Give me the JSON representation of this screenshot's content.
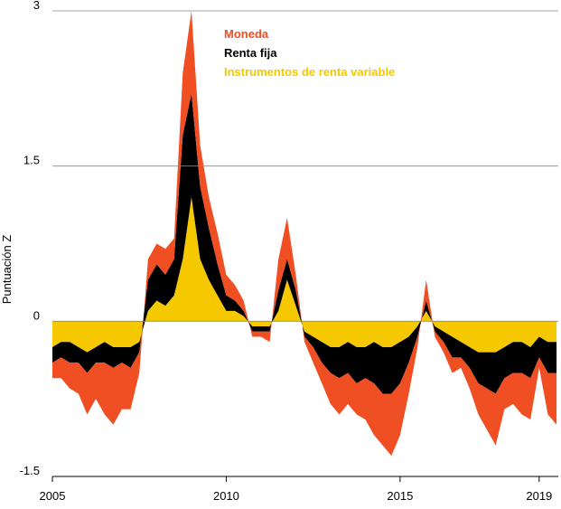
{
  "chart_data": {
    "type": "stacked-area",
    "y_label": "Puntuación Z",
    "x": [
      2005.0,
      2005.25,
      2005.5,
      2005.75,
      2006.0,
      2006.25,
      2006.5,
      2006.75,
      2007.0,
      2007.25,
      2007.5,
      2007.75,
      2008.0,
      2008.25,
      2008.5,
      2008.75,
      2009.0,
      2009.25,
      2009.5,
      2009.75,
      2010.0,
      2010.25,
      2010.5,
      2010.75,
      2011.0,
      2011.25,
      2011.5,
      2011.75,
      2012.0,
      2012.25,
      2012.5,
      2012.75,
      2013.0,
      2013.25,
      2013.5,
      2013.75,
      2014.0,
      2014.25,
      2014.5,
      2014.75,
      2015.0,
      2015.25,
      2015.5,
      2015.75,
      2016.0,
      2016.25,
      2016.5,
      2016.75,
      2017.0,
      2017.25,
      2017.5,
      2017.75,
      2018.0,
      2018.25,
      2018.5,
      2018.75,
      2019.0,
      2019.25,
      2019.5
    ],
    "series": [
      {
        "name": "Instrumentos de renta variable",
        "color": "#f5c800",
        "values": [
          -0.25,
          -0.2,
          -0.2,
          -0.25,
          -0.3,
          -0.25,
          -0.2,
          -0.25,
          -0.25,
          -0.25,
          -0.2,
          0.1,
          0.2,
          0.15,
          0.25,
          0.6,
          1.2,
          0.6,
          0.4,
          0.25,
          0.1,
          0.1,
          0.05,
          -0.05,
          -0.05,
          -0.05,
          0.1,
          0.4,
          0.15,
          -0.1,
          -0.15,
          -0.2,
          -0.25,
          -0.25,
          -0.2,
          -0.25,
          -0.25,
          -0.2,
          -0.25,
          -0.25,
          -0.2,
          -0.15,
          -0.05,
          0.1,
          -0.05,
          -0.1,
          -0.15,
          -0.2,
          -0.25,
          -0.3,
          -0.3,
          -0.3,
          -0.25,
          -0.2,
          -0.2,
          -0.25,
          -0.15,
          -0.2,
          -0.2
        ]
      },
      {
        "name": "Renta fija",
        "color": "#000000",
        "values": [
          -0.15,
          -0.15,
          -0.2,
          -0.15,
          -0.2,
          -0.15,
          -0.2,
          -0.2,
          -0.15,
          -0.2,
          -0.1,
          0.3,
          0.35,
          0.3,
          0.35,
          1.2,
          1.0,
          0.7,
          0.5,
          0.3,
          0.15,
          0.1,
          0.05,
          -0.05,
          -0.05,
          -0.05,
          0.2,
          0.2,
          0.15,
          -0.05,
          -0.1,
          -0.2,
          -0.25,
          -0.3,
          -0.3,
          -0.35,
          -0.3,
          -0.4,
          -0.45,
          -0.45,
          -0.4,
          -0.25,
          -0.1,
          0.1,
          -0.05,
          -0.1,
          -0.2,
          -0.15,
          -0.2,
          -0.3,
          -0.35,
          -0.4,
          -0.3,
          -0.3,
          -0.3,
          -0.3,
          -0.2,
          -0.3,
          -0.3
        ]
      },
      {
        "name": "Moneda",
        "color": "#f04e23",
        "values": [
          -0.15,
          -0.2,
          -0.25,
          -0.3,
          -0.4,
          -0.35,
          -0.5,
          -0.55,
          -0.45,
          -0.4,
          -0.2,
          0.2,
          0.2,
          0.25,
          0.2,
          0.6,
          0.8,
          0.4,
          0.3,
          0.3,
          0.2,
          0.15,
          0.1,
          -0.05,
          -0.05,
          -0.1,
          0.3,
          0.4,
          0.15,
          -0.05,
          -0.15,
          -0.2,
          -0.3,
          -0.35,
          -0.3,
          -0.3,
          -0.4,
          -0.5,
          -0.5,
          -0.6,
          -0.5,
          -0.3,
          -0.1,
          0.2,
          -0.05,
          -0.1,
          -0.15,
          -0.1,
          -0.2,
          -0.3,
          -0.4,
          -0.5,
          -0.3,
          -0.3,
          -0.4,
          -0.4,
          -0.1,
          -0.4,
          -0.5
        ]
      }
    ],
    "xlim": [
      2005,
      2019.55
    ],
    "xticks": [
      2005,
      2010,
      2015,
      2019
    ],
    "ylim": [
      -1.5,
      3
    ],
    "yticks": [
      -1.5,
      0,
      1.5,
      3
    ],
    "grid": true
  }
}
